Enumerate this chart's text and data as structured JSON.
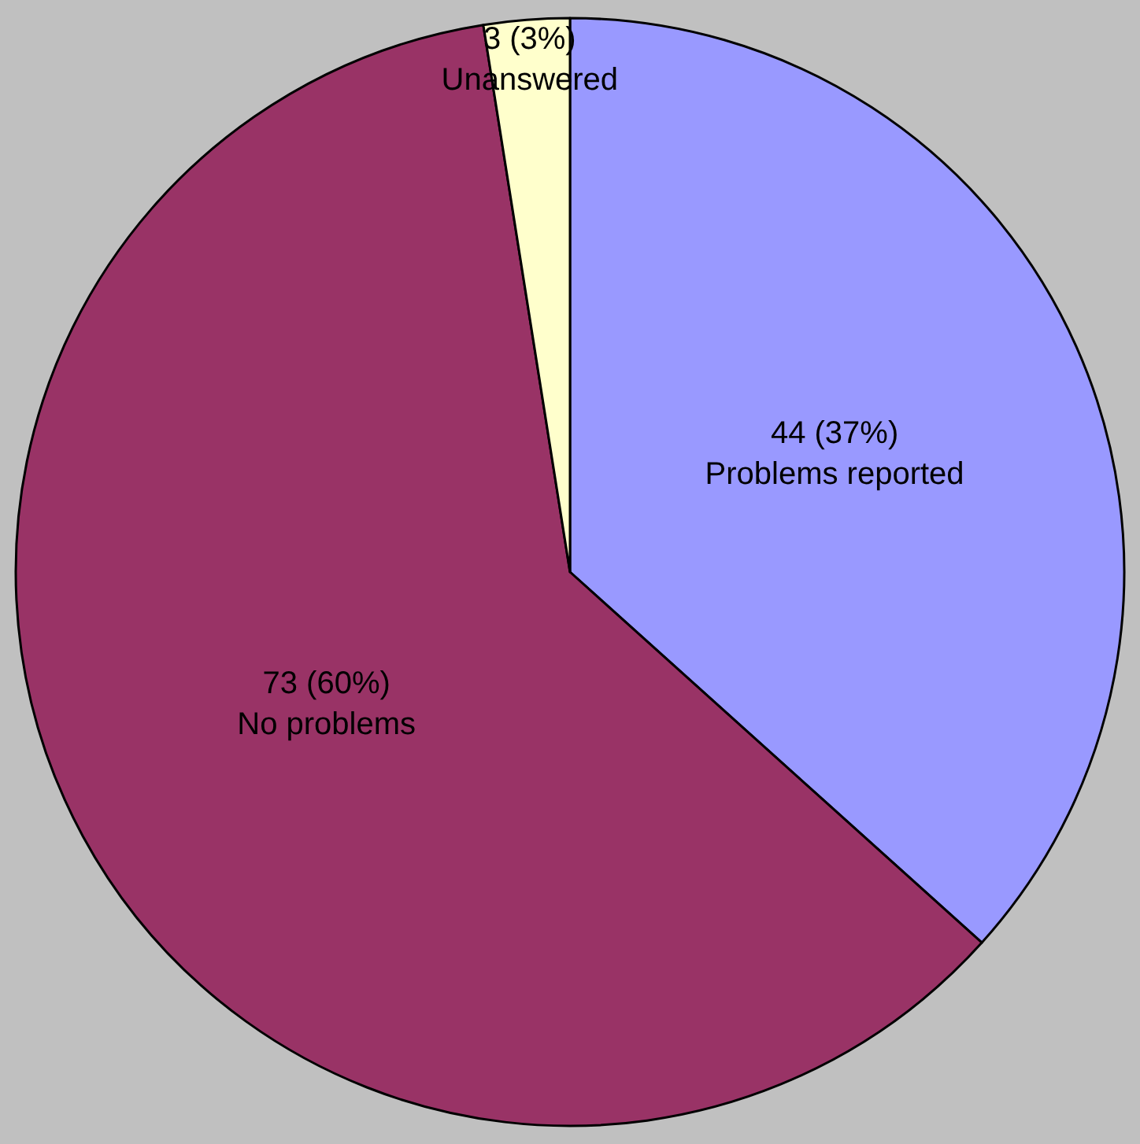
{
  "chart_data": {
    "type": "pie",
    "categories": [
      "Problems reported",
      "No problems",
      "Unanswered"
    ],
    "values": [
      44,
      73,
      3
    ],
    "colors": [
      "#9999ff",
      "#993366",
      "#ffffcc"
    ],
    "value_labels": [
      "44 (37%)",
      "73 (60%)",
      "3 (3%)"
    ],
    "legend": false
  }
}
